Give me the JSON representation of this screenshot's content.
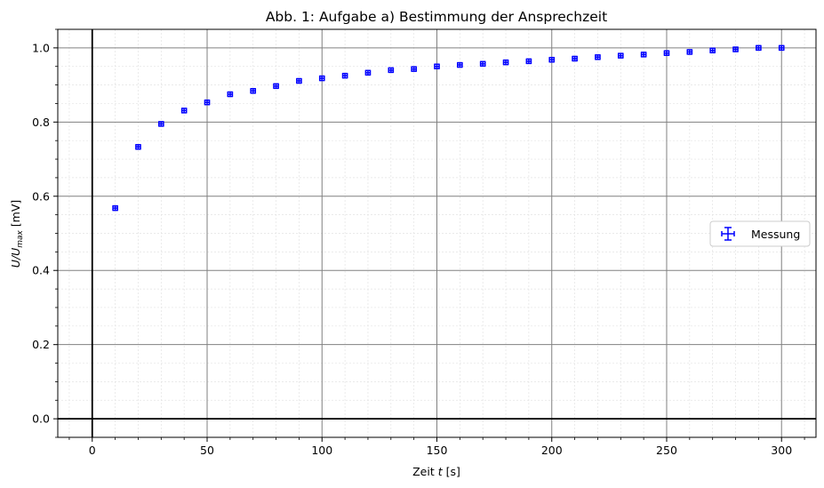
{
  "chart_data": {
    "type": "scatter",
    "title": "Abb. 1: Aufgabe a) Bestimmung der Ansprechzeit",
    "xlabel_prefix": "Zeit ",
    "xlabel_var": "t",
    "xlabel_suffix": " [s]",
    "ylabel_main": "U/U",
    "ylabel_sub": "max",
    "ylabel_suffix": " [mV]",
    "xlim": [
      -15,
      315
    ],
    "ylim": [
      -0.05,
      1.05
    ],
    "x_ticks": [
      0,
      50,
      100,
      150,
      200,
      250,
      300
    ],
    "y_ticks": [
      0.0,
      0.2,
      0.4,
      0.6,
      0.8,
      1.0
    ],
    "x_tick_labels": [
      "0",
      "50",
      "100",
      "150",
      "200",
      "250",
      "300"
    ],
    "y_tick_labels": [
      "0.0",
      "0.2",
      "0.4",
      "0.6",
      "0.8",
      "1.0"
    ],
    "grid": "major and minor",
    "legend_position": "center-right",
    "series": [
      {
        "name": "Messung",
        "color": "#0000ff",
        "x": [
          10,
          20,
          30,
          40,
          50,
          60,
          70,
          80,
          90,
          100,
          110,
          120,
          130,
          140,
          150,
          160,
          170,
          180,
          190,
          200,
          210,
          220,
          230,
          240,
          250,
          260,
          270,
          280,
          290,
          300
        ],
        "y": [
          0.568,
          0.733,
          0.795,
          0.831,
          0.853,
          0.875,
          0.884,
          0.897,
          0.911,
          0.918,
          0.925,
          0.933,
          0.94,
          0.943,
          0.95,
          0.954,
          0.957,
          0.961,
          0.964,
          0.968,
          0.971,
          0.975,
          0.979,
          0.982,
          0.986,
          0.989,
          0.993,
          0.996,
          1.0,
          1.0
        ],
        "yerr": 0.006,
        "xerr": 1
      }
    ]
  }
}
